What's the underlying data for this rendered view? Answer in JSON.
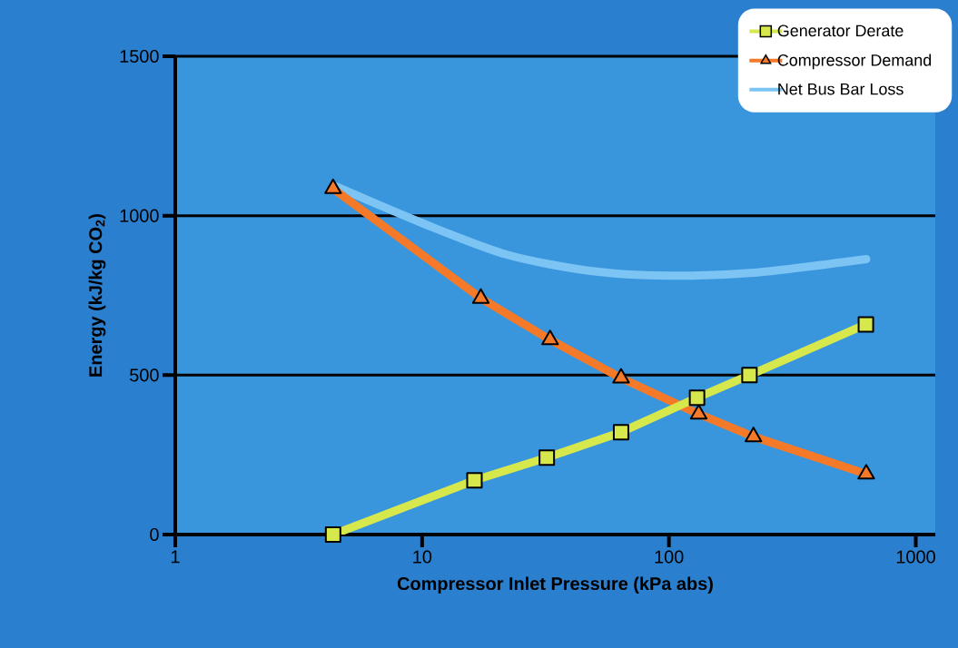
{
  "chart_data": {
    "type": "line",
    "xlabel": "Compressor Inlet Pressure (kPa abs)",
    "ylabel": "Energy (kJ/kg CO$_{2}$)",
    "log": "x",
    "xlim": [
      1,
      1200
    ],
    "ylim": [
      0,
      1500
    ],
    "xticks": [
      1,
      10,
      100,
      1000
    ],
    "yticks": [
      0,
      500,
      1000,
      1500
    ],
    "grid": "y",
    "legend": "top right",
    "line_style": "solid",
    "series": [
      {
        "name": "Generator Derate",
        "color": "#d6e84c",
        "marker": "square",
        "x": [
          4.36,
          16.3,
          32,
          64,
          130,
          212,
          628
        ],
        "values": [
          0,
          170,
          241,
          321,
          429,
          500,
          659
        ]
      },
      {
        "name": "Compressor Demand",
        "color": "#f47a2a",
        "marker": "triangle",
        "x": [
          4.36,
          17.3,
          33,
          64,
          132,
          220,
          630
        ],
        "values": [
          1085,
          741,
          611,
          491,
          378,
          307,
          190
        ]
      },
      {
        "name": "Net Bus Bar Loss",
        "color": "#7cc4f4",
        "marker": "none",
        "x": [
          4.5,
          10,
          22,
          48,
          100,
          220,
          630
        ],
        "values": [
          1091,
          977,
          878,
          827,
          812,
          821,
          864
        ]
      }
    ]
  }
}
